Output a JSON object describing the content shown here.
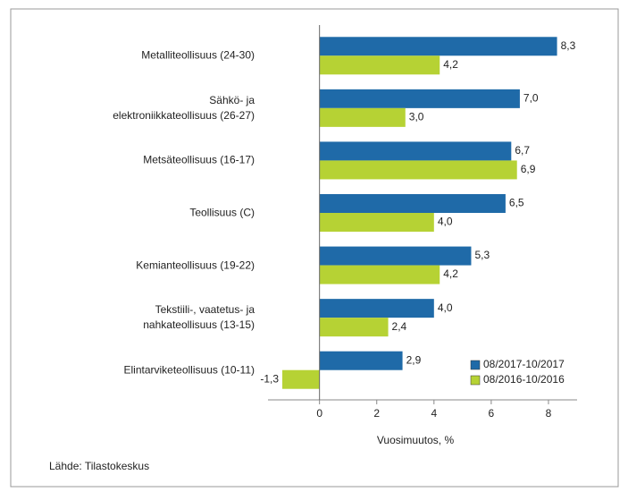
{
  "chart_data": {
    "type": "hbar",
    "categories": [
      "Metalliteollisuus (24-30)",
      "Sähkö- ja\nelektroniikkateollisuus (26-27)",
      "Metsäteollisuus (16-17)",
      "Teollisuus (C)",
      "Kemianteollisuus (19-22)",
      "Tekstiili-, vaatetus- ja\nnahkateollisuus (13-15)",
      "Elintarviketeollisuus (10-11)"
    ],
    "series": [
      {
        "name": "08/2017-10/2017",
        "color": "#1f6aa8",
        "values": [
          8.3,
          7.0,
          6.7,
          6.5,
          5.3,
          4.0,
          2.9
        ],
        "value_labels": [
          "8,3",
          "7,0",
          "6,7",
          "6,5",
          "5,3",
          "4,0",
          "2,9"
        ]
      },
      {
        "name": "08/2016-10/2016",
        "color": "#b6d234",
        "values": [
          4.2,
          3.0,
          6.9,
          4.0,
          4.2,
          2.4,
          -1.3
        ],
        "value_labels": [
          "4,2",
          "3,0",
          "6,9",
          "4,0",
          "4,2",
          "2,4",
          "-1,3"
        ]
      }
    ],
    "xlim": [
      -1.8,
      9
    ],
    "xticks": [
      0,
      2,
      4,
      6,
      8
    ],
    "xlabel": "Vuosimuutos, %",
    "source": "Lähde: Tilastokeskus",
    "legend": "lower right"
  }
}
